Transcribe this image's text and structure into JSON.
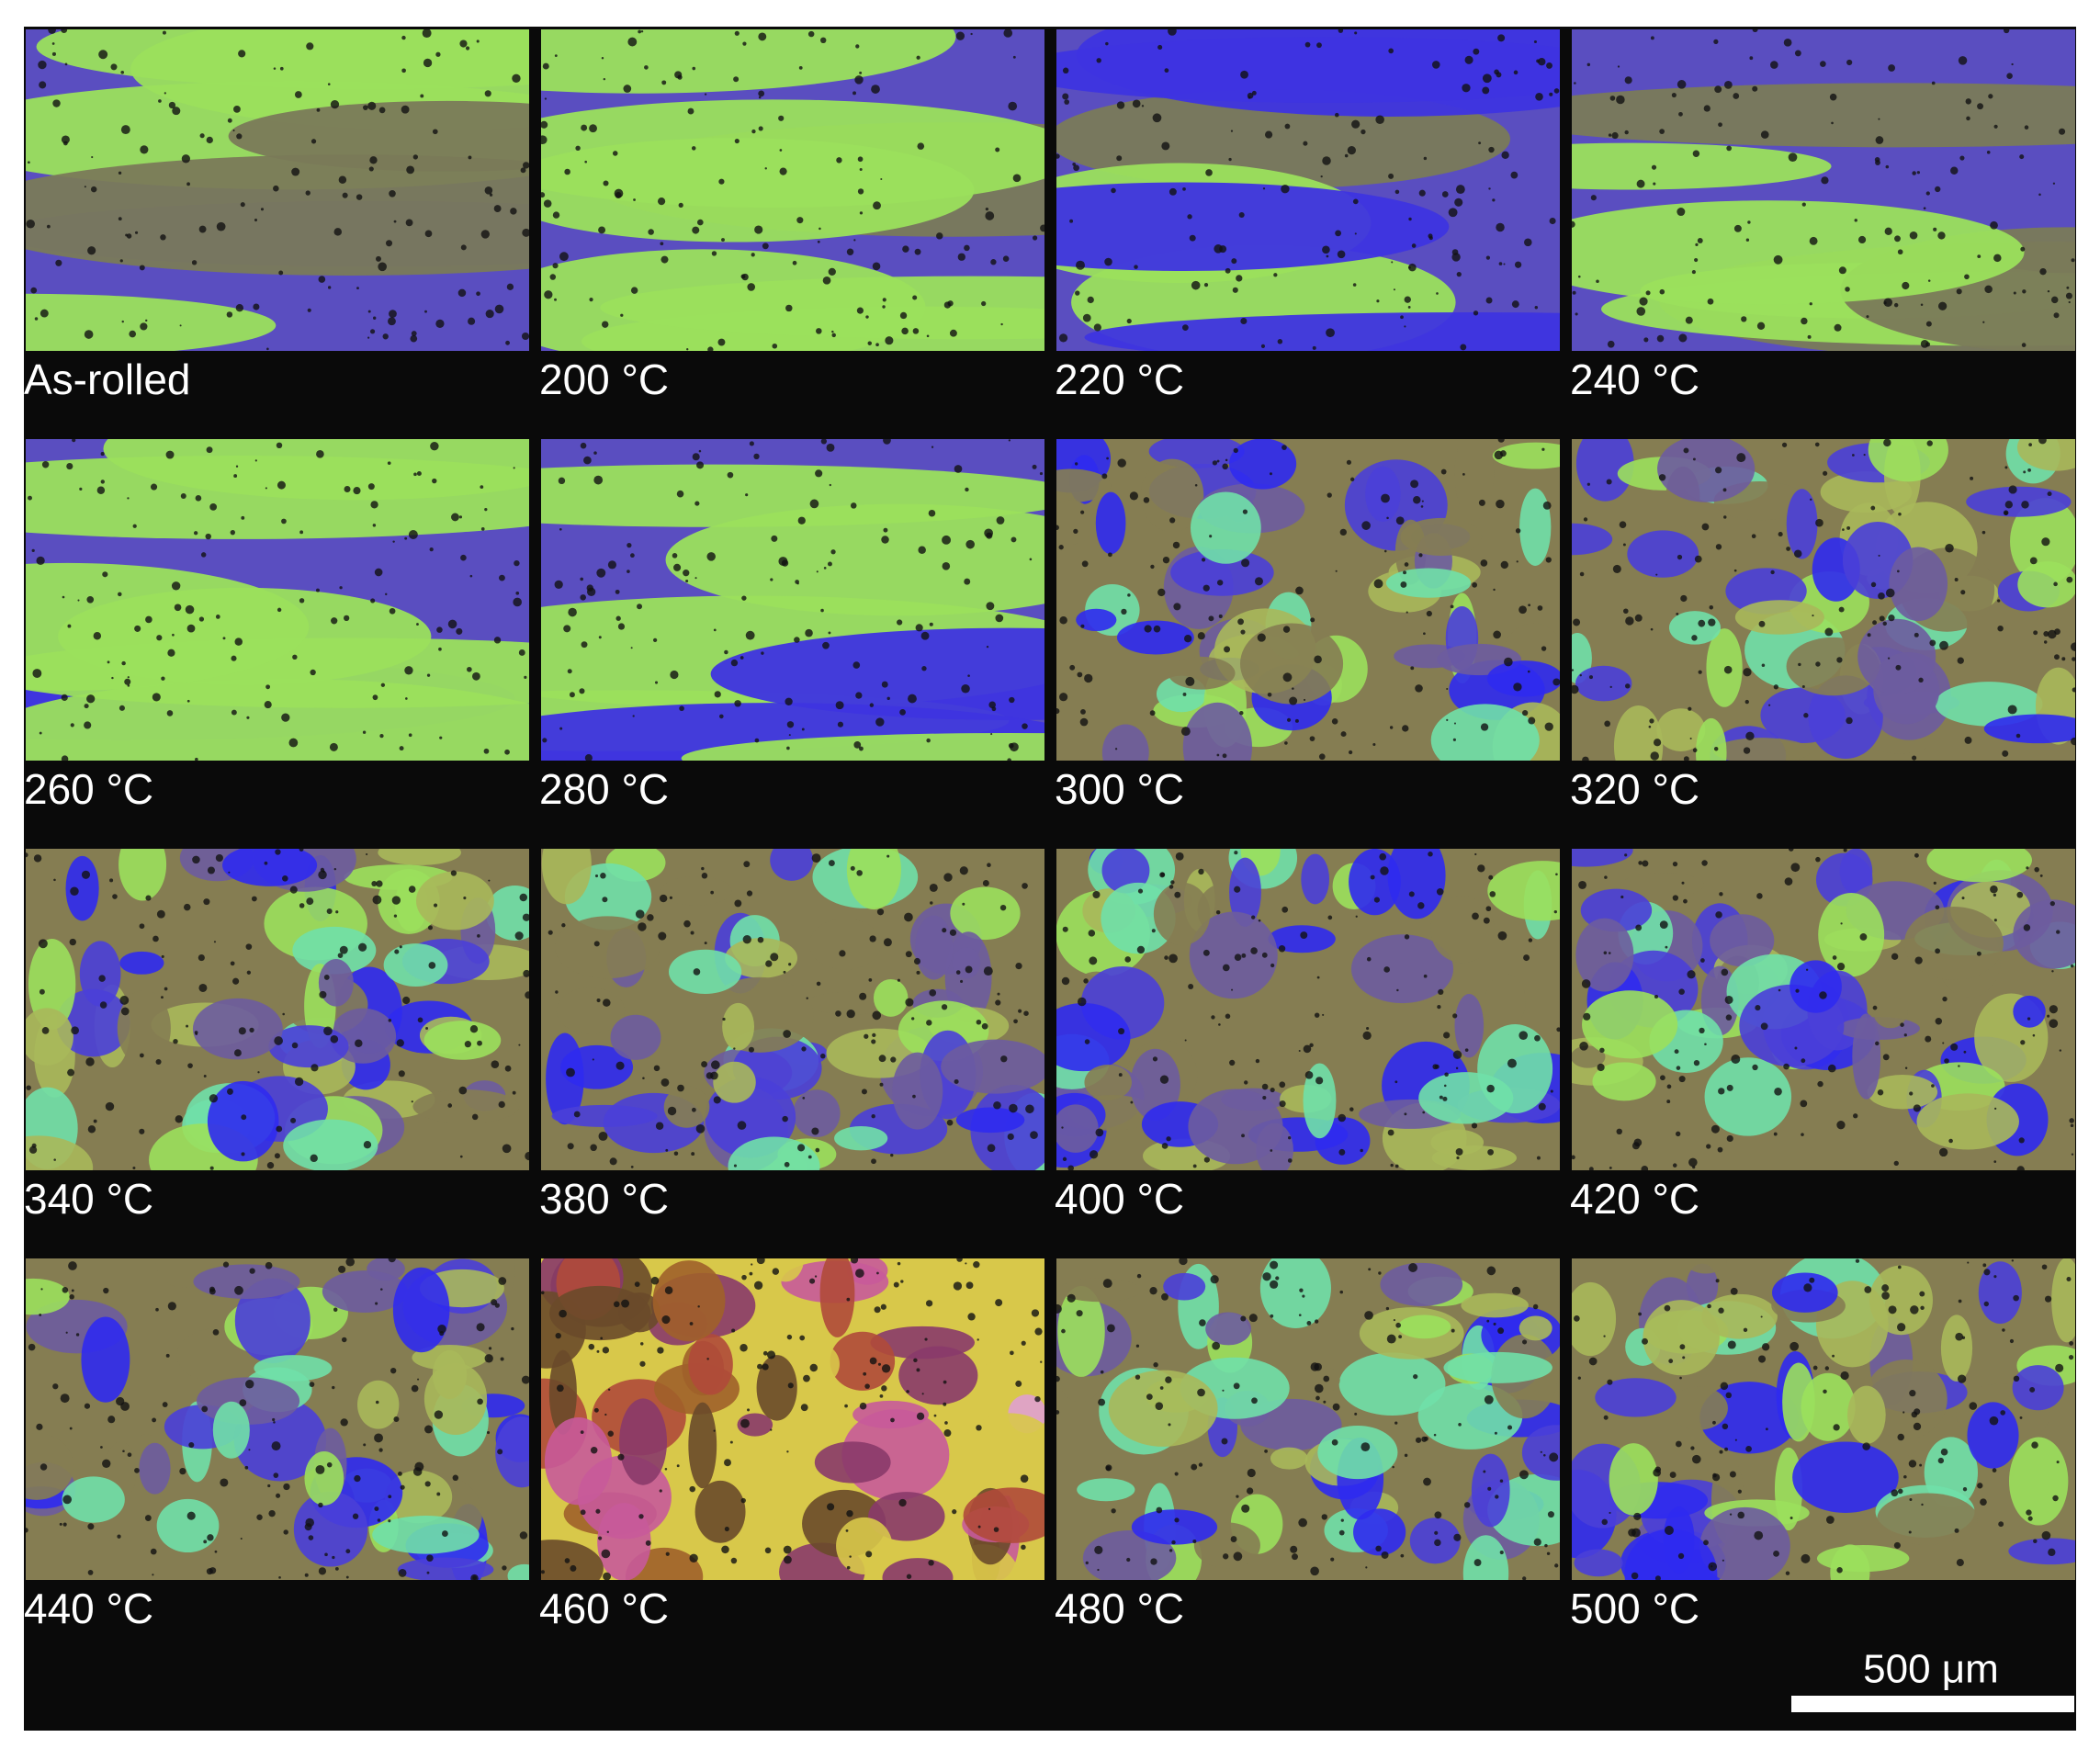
{
  "panels": [
    {
      "label": "As-rolled"
    },
    {
      "label": "200 °C"
    },
    {
      "label": "220 °C"
    },
    {
      "label": "240 °C"
    },
    {
      "label": "260 °C"
    },
    {
      "label": "280 °C"
    },
    {
      "label": "300 °C"
    },
    {
      "label": "320 °C"
    },
    {
      "label": "340 °C"
    },
    {
      "label": "380 °C"
    },
    {
      "label": "400 °C"
    },
    {
      "label": "420 °C"
    },
    {
      "label": "440 °C"
    },
    {
      "label": "460 °C"
    },
    {
      "label": "480 °C"
    },
    {
      "label": "500 °C"
    }
  ],
  "scale_bar": {
    "label": "500 μm"
  }
}
